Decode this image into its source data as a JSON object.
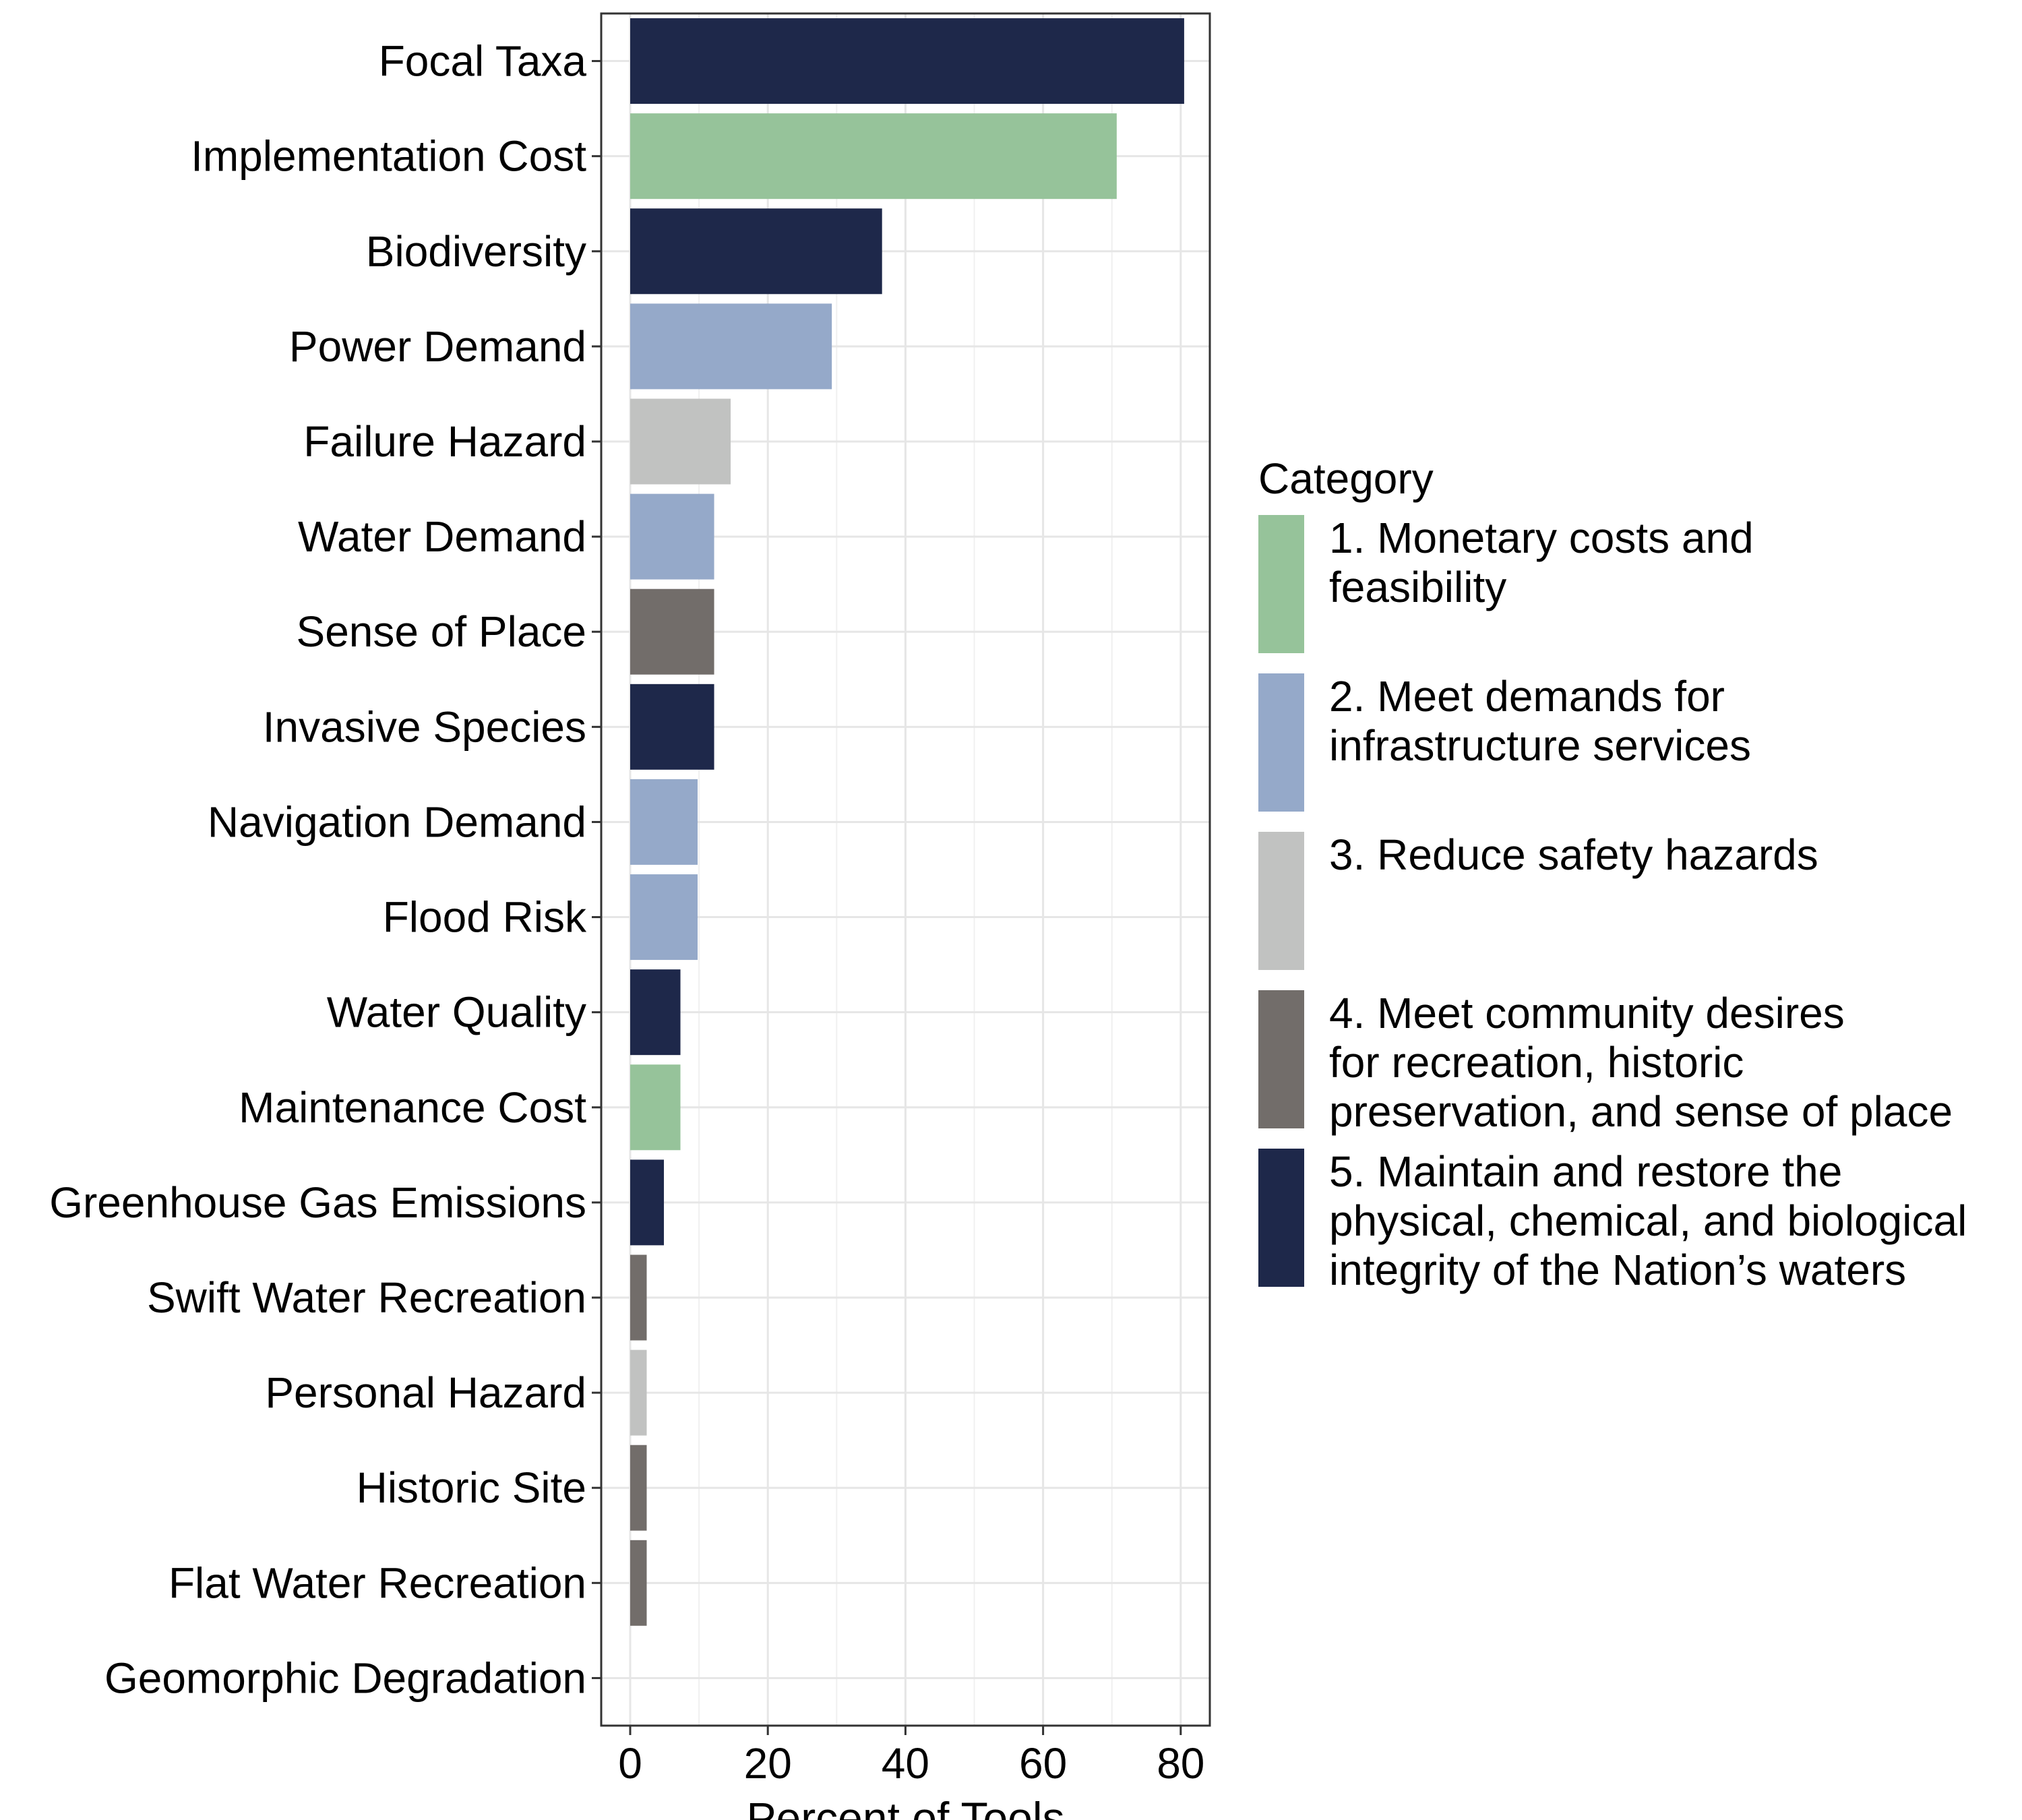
{
  "chart_data": {
    "type": "bar",
    "orientation": "horizontal",
    "xlabel": "Percent of Tools",
    "ylabel": "",
    "xlim": [
      0,
      84
    ],
    "xticks": [
      0,
      20,
      40,
      60,
      80
    ],
    "grid": true,
    "legend_title": "Category",
    "legend_position": "right",
    "categories_legend": [
      {
        "id": 1,
        "label": "1. Monetary costs and\nfeasibility",
        "color": "#96c39a"
      },
      {
        "id": 2,
        "label": "2. Meet demands for\ninfrastructure services",
        "color": "#95a9c9"
      },
      {
        "id": 3,
        "label": "3. Reduce safety hazards",
        "color": "#c1c2c1"
      },
      {
        "id": 4,
        "label": "4. Meet community desires\nfor recreation, historic\npreservation, and sense of place",
        "color": "#726d6a"
      },
      {
        "id": 5,
        "label": "5. Maintain and restore the\nphysical, chemical, and biological\nintegrity of the Nation’s waters",
        "color": "#1e284a"
      }
    ],
    "bars": [
      {
        "label": "Focal Taxa",
        "value": 80.5,
        "category": 5
      },
      {
        "label": "Implementation Cost",
        "value": 70.7,
        "category": 1
      },
      {
        "label": "Biodiversity",
        "value": 36.6,
        "category": 5
      },
      {
        "label": "Power Demand",
        "value": 29.3,
        "category": 2
      },
      {
        "label": "Failure Hazard",
        "value": 14.6,
        "category": 3
      },
      {
        "label": "Water Demand",
        "value": 12.2,
        "category": 2
      },
      {
        "label": "Sense of Place",
        "value": 12.2,
        "category": 4
      },
      {
        "label": "Invasive Species",
        "value": 12.2,
        "category": 5
      },
      {
        "label": "Navigation Demand",
        "value": 9.8,
        "category": 2
      },
      {
        "label": "Flood Risk",
        "value": 9.8,
        "category": 2
      },
      {
        "label": "Water Quality",
        "value": 7.3,
        "category": 5
      },
      {
        "label": "Maintenance Cost",
        "value": 7.3,
        "category": 1
      },
      {
        "label": "Greenhouse Gas Emissions",
        "value": 4.9,
        "category": 5
      },
      {
        "label": "Swift Water Recreation",
        "value": 2.4,
        "category": 4
      },
      {
        "label": "Personal Hazard",
        "value": 2.4,
        "category": 3
      },
      {
        "label": "Historic Site",
        "value": 2.4,
        "category": 4
      },
      {
        "label": "Flat Water Recreation",
        "value": 2.4,
        "category": 4
      },
      {
        "label": "Geomorphic Degradation",
        "value": 0,
        "category": 5
      }
    ]
  }
}
